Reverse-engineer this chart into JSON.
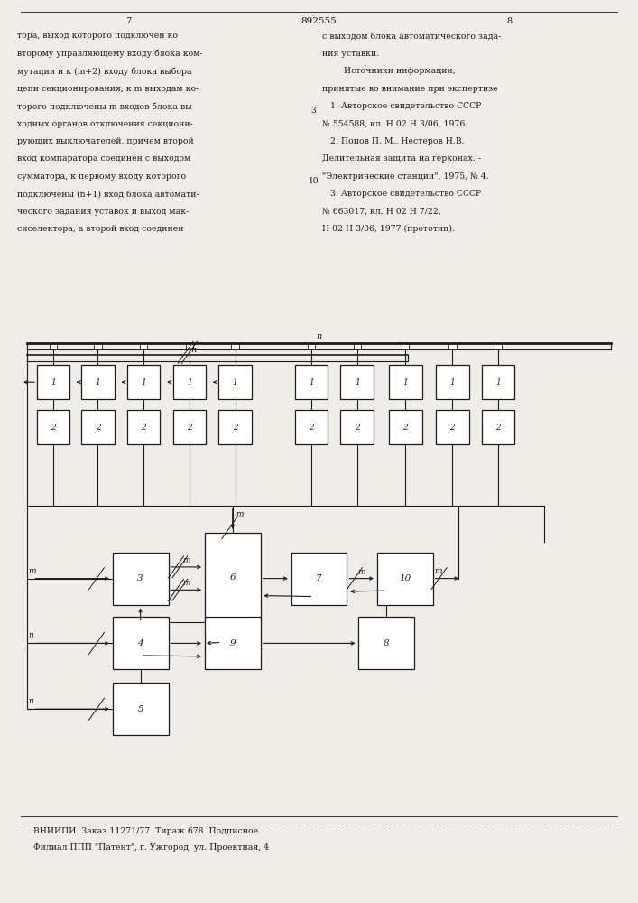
{
  "page_width": 7.07,
  "page_height": 10.0,
  "bg_color": "#f0ede8",
  "text_color": "#1a1a1a",
  "line_color": "#1a1a1a",
  "page_number_left": "7",
  "page_number_center": "892555",
  "page_number_right": "8",
  "left_text": [
    "тора, выход которого подключен ко",
    "второму управляющему входу блока ком-",
    "мутации и к (m+2) входу блока выбора",
    "цепи секционирования, к m выходам ко-",
    "торого подключены m входов блока вы-",
    "ходных органов отключения секциони-",
    "рующих выключателей, причем второй",
    "вход компаратора соединен с выходом",
    "сумматора, к первому входу которого",
    "подключены (n+1) вход блока автомати-",
    "ческого задания уставок и выход мак-",
    "сиселектора, а второй вход соединен"
  ],
  "right_text": [
    "с выходом блока автоматического зада-",
    "ния уставки.",
    "        Источники информации,",
    "принятые во внимание при экспертизе",
    "   1. Авторское свидетельство СССР",
    "№ 554588, кл. Н 02 Н 3/06, 1976.",
    "   2. Попов П. М., Нестеров Н.В.",
    "Делительная защита на герконах. -",
    "\"Электрические станции\", 1975, № 4.",
    "   3. Авторское свидетельство СССР",
    "№ 663017, кл. Н 02 Н 7/22,",
    "Н 02 Н 3/06, 1977 (прототип)."
  ],
  "bottom_text1": "ВНИИПИ  Заказ 11271/77  Тираж 678  Подписное",
  "bottom_text2": "Филиал ППП \"Патент\", г. Ужгород, ул. Проектная, 4"
}
